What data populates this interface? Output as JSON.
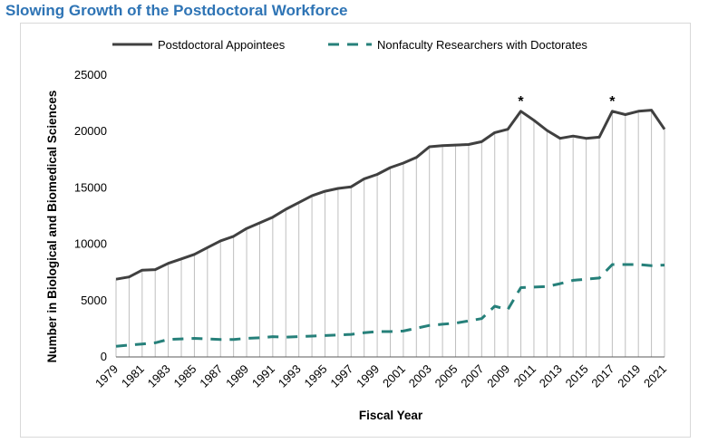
{
  "page_title": "Slowing Growth of the Postdoctoral Workforce",
  "chart_data": {
    "type": "line",
    "title": "Slowing Growth of the Postdoctoral Workforce",
    "xlabel": "Fiscal Year",
    "ylabel": "Number in Biological and Biomedical Sciences",
    "ylim": [
      0,
      25000
    ],
    "yticks": [
      0,
      5000,
      10000,
      15000,
      20000,
      25000
    ],
    "ytick_labels": [
      "0",
      "5000",
      "10000",
      "15000",
      "20000",
      "25000"
    ],
    "x": [
      1979,
      1980,
      1981,
      1982,
      1983,
      1984,
      1985,
      1986,
      1987,
      1988,
      1989,
      1990,
      1991,
      1992,
      1993,
      1994,
      1995,
      1996,
      1997,
      1998,
      1999,
      2000,
      2001,
      2002,
      2003,
      2004,
      2005,
      2006,
      2007,
      2008,
      2009,
      2010,
      2011,
      2012,
      2013,
      2014,
      2015,
      2016,
      2017,
      2018,
      2019,
      2020,
      2021
    ],
    "xtick_labels": [
      "1979",
      "1981",
      "1983",
      "1985",
      "1987",
      "1989",
      "1991",
      "1993",
      "1995",
      "1997",
      "1999",
      "2001",
      "2003",
      "2005",
      "2007",
      "2009",
      "2011",
      "2013",
      "2015",
      "2017",
      "2019",
      "2021"
    ],
    "legend_position": "top",
    "grid": "vertical drop lines from postdoctoral series",
    "series": [
      {
        "name": "Postdoctoral Appointees",
        "style": "solid",
        "color": "#404040",
        "values": [
          6900,
          7100,
          7700,
          7750,
          8300,
          8700,
          9100,
          9700,
          10300,
          10700,
          11400,
          11900,
          12400,
          13100,
          13700,
          14300,
          14700,
          14950,
          15100,
          15800,
          16200,
          16800,
          17200,
          17700,
          18650,
          18750,
          18800,
          18850,
          19100,
          19900,
          20200,
          21800,
          21000,
          20100,
          19400,
          19600,
          19400,
          19500,
          21800,
          21500,
          21800,
          21900,
          20200
        ]
      },
      {
        "name": "Nonfaculty Researchers with Doctorates",
        "style": "dashed",
        "color": "#26807a",
        "values": [
          950,
          1050,
          1150,
          1250,
          1550,
          1600,
          1650,
          1600,
          1550,
          1550,
          1650,
          1700,
          1800,
          1750,
          1800,
          1850,
          1900,
          1950,
          2000,
          2150,
          2250,
          2250,
          2300,
          2550,
          2800,
          2900,
          3000,
          3200,
          3400,
          4500,
          4200,
          6150,
          6200,
          6250,
          6500,
          6800,
          6900,
          7000,
          8200,
          8200,
          8200,
          8100,
          8150
        ]
      }
    ],
    "annotations": [
      {
        "x": 2010,
        "text": "*"
      },
      {
        "x": 2017,
        "text": "*"
      }
    ]
  }
}
